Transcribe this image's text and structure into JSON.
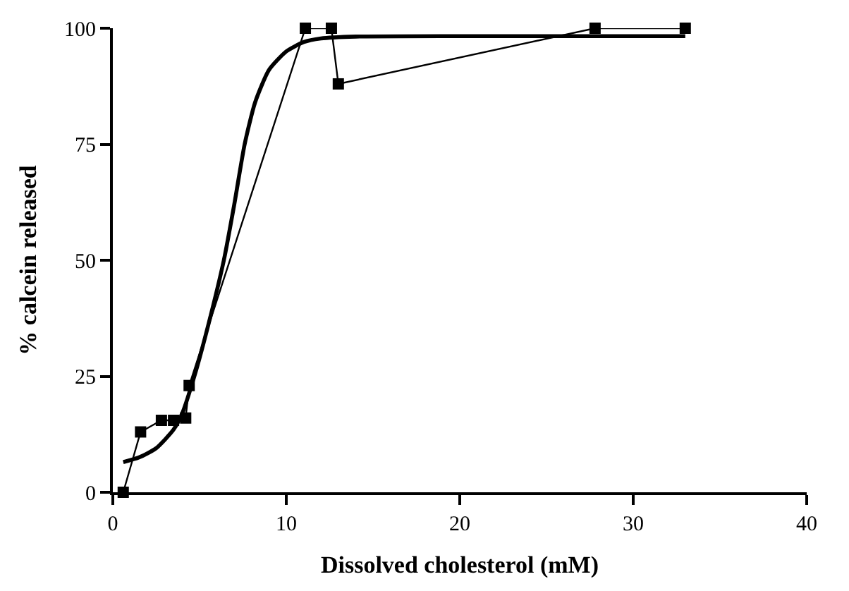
{
  "chart_data": {
    "type": "line",
    "xlabel": "Dissolved cholesterol (mM)",
    "ylabel": "% calcein released",
    "xlim": [
      0,
      40
    ],
    "xticks": [
      0,
      10,
      20,
      30,
      40
    ],
    "ylim": [
      0,
      100
    ],
    "yticks": [
      0,
      25,
      50,
      75,
      100
    ],
    "line_style": "solid",
    "series": [
      {
        "marker": "square",
        "color": "#000000",
        "x": [
          0.6,
          1.6,
          2.8,
          3.5,
          4.2,
          4.4,
          11.1,
          12.6,
          13.0,
          27.8,
          33.0
        ],
        "values": [
          0,
          13,
          15.5,
          15.5,
          16,
          23,
          100,
          100,
          88,
          100,
          100
        ]
      },
      {
        "marker": "none",
        "color": "#000000",
        "x": [
          0.6,
          1.5,
          2.5,
          3.5,
          4,
          4.7,
          5.5,
          6.4,
          7,
          7.6,
          8.2,
          9,
          10,
          11,
          12,
          14,
          20,
          33
        ],
        "values": [
          6.5,
          7.5,
          9.5,
          13.5,
          17,
          25,
          36,
          50,
          62,
          75,
          84,
          91,
          95,
          97,
          97.8,
          98.2,
          98.3,
          98.3
        ]
      }
    ]
  }
}
